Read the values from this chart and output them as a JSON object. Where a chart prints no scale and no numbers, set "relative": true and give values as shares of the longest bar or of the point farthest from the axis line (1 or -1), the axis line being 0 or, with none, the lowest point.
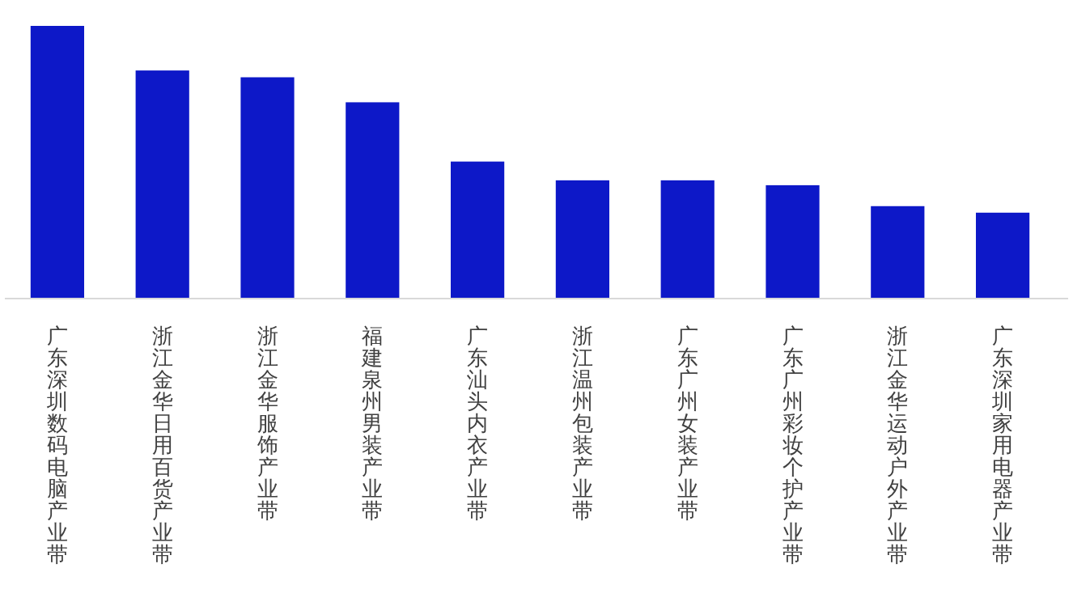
{
  "chart_data": {
    "type": "bar",
    "relative": true,
    "color": "#0d18c8",
    "categories": [
      "广东深圳数码电脑产业带",
      "浙江金华日用百货产业带",
      "浙江金华服饰产业带",
      "福建泉州男装产业带",
      "广东汕头内衣产业带",
      "浙江温州包装产业带",
      "广东广州女装产业带",
      "广东广州彩妆个护产业带",
      "浙江金华运动户外产业带",
      "广东深圳家用电器产业带"
    ],
    "values": [
      1,
      0.836,
      0.811,
      0.719,
      0.501,
      0.432,
      0.432,
      0.414,
      0.337,
      0.313
    ]
  }
}
